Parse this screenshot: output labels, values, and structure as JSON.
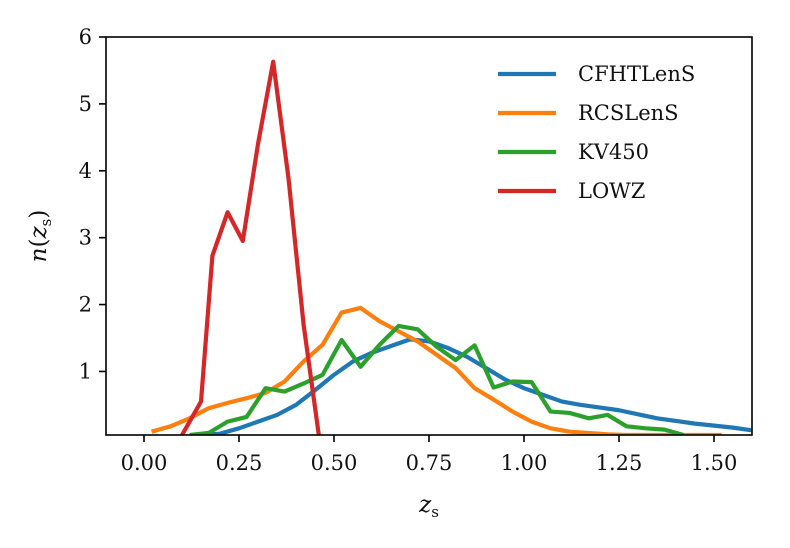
{
  "chart_data": {
    "type": "line",
    "title": "",
    "xlabel": "z_s",
    "ylabel": "n(z_s)",
    "xlim": [
      -0.1,
      1.6
    ],
    "ylim": [
      0.05,
      6.0
    ],
    "xticks": [
      0.0,
      0.25,
      0.5,
      0.75,
      1.0,
      1.25,
      1.5
    ],
    "xtick_labels": [
      "0.00",
      "0.25",
      "0.50",
      "0.75",
      "1.00",
      "1.25",
      "1.50"
    ],
    "yticks": [
      1,
      2,
      3,
      4,
      5,
      6
    ],
    "ytick_labels": [
      "1",
      "2",
      "3",
      "4",
      "5",
      "6"
    ],
    "grid": false,
    "legend_position": "top-right",
    "series": [
      {
        "name": "CFHTLenS",
        "color": "#1f77b4",
        "x": [
          0.15,
          0.2,
          0.25,
          0.3,
          0.35,
          0.4,
          0.45,
          0.5,
          0.55,
          0.6,
          0.65,
          0.7,
          0.75,
          0.8,
          0.85,
          0.9,
          0.95,
          1.0,
          1.05,
          1.1,
          1.15,
          1.2,
          1.25,
          1.3,
          1.35,
          1.4,
          1.45,
          1.5,
          1.55,
          1.6
        ],
        "y": [
          0.05,
          0.07,
          0.15,
          0.25,
          0.35,
          0.5,
          0.72,
          0.95,
          1.15,
          1.28,
          1.38,
          1.48,
          1.45,
          1.35,
          1.22,
          1.05,
          0.88,
          0.75,
          0.65,
          0.55,
          0.5,
          0.46,
          0.42,
          0.36,
          0.3,
          0.26,
          0.22,
          0.19,
          0.16,
          0.12
        ]
      },
      {
        "name": "RCSLenS",
        "color": "#ff7f0e",
        "x": [
          0.02,
          0.07,
          0.12,
          0.17,
          0.22,
          0.27,
          0.32,
          0.37,
          0.42,
          0.47,
          0.52,
          0.57,
          0.62,
          0.67,
          0.72,
          0.77,
          0.82,
          0.87,
          0.92,
          0.97,
          1.02,
          1.07,
          1.12,
          1.17,
          1.22,
          1.27,
          1.32,
          1.37,
          1.42,
          1.47,
          1.52
        ],
        "y": [
          0.1,
          0.18,
          0.3,
          0.45,
          0.53,
          0.6,
          0.68,
          0.85,
          1.15,
          1.4,
          1.88,
          1.95,
          1.75,
          1.6,
          1.45,
          1.25,
          1.05,
          0.75,
          0.58,
          0.4,
          0.25,
          0.15,
          0.1,
          0.08,
          0.06,
          0.05,
          0.05,
          0.04,
          0.04,
          0.03,
          0.03
        ]
      },
      {
        "name": "KV450",
        "color": "#2ca02c",
        "x": [
          0.12,
          0.17,
          0.22,
          0.27,
          0.32,
          0.37,
          0.42,
          0.47,
          0.52,
          0.57,
          0.62,
          0.67,
          0.72,
          0.77,
          0.82,
          0.87,
          0.92,
          0.97,
          1.02,
          1.07,
          1.12,
          1.17,
          1.22,
          1.27,
          1.32,
          1.37,
          1.42
        ],
        "y": [
          0.05,
          0.08,
          0.25,
          0.32,
          0.75,
          0.7,
          0.82,
          0.95,
          1.47,
          1.07,
          1.4,
          1.68,
          1.63,
          1.37,
          1.17,
          1.39,
          0.76,
          0.85,
          0.84,
          0.4,
          0.38,
          0.3,
          0.35,
          0.18,
          0.15,
          0.13,
          0.05
        ]
      },
      {
        "name": "LOWZ",
        "color": "#d62728",
        "x": [
          0.1,
          0.15,
          0.18,
          0.22,
          0.26,
          0.3,
          0.34,
          0.38,
          0.42,
          0.46
        ],
        "y": [
          0.05,
          0.55,
          2.73,
          3.38,
          2.95,
          4.4,
          5.63,
          3.9,
          1.7,
          0.05
        ]
      }
    ]
  }
}
